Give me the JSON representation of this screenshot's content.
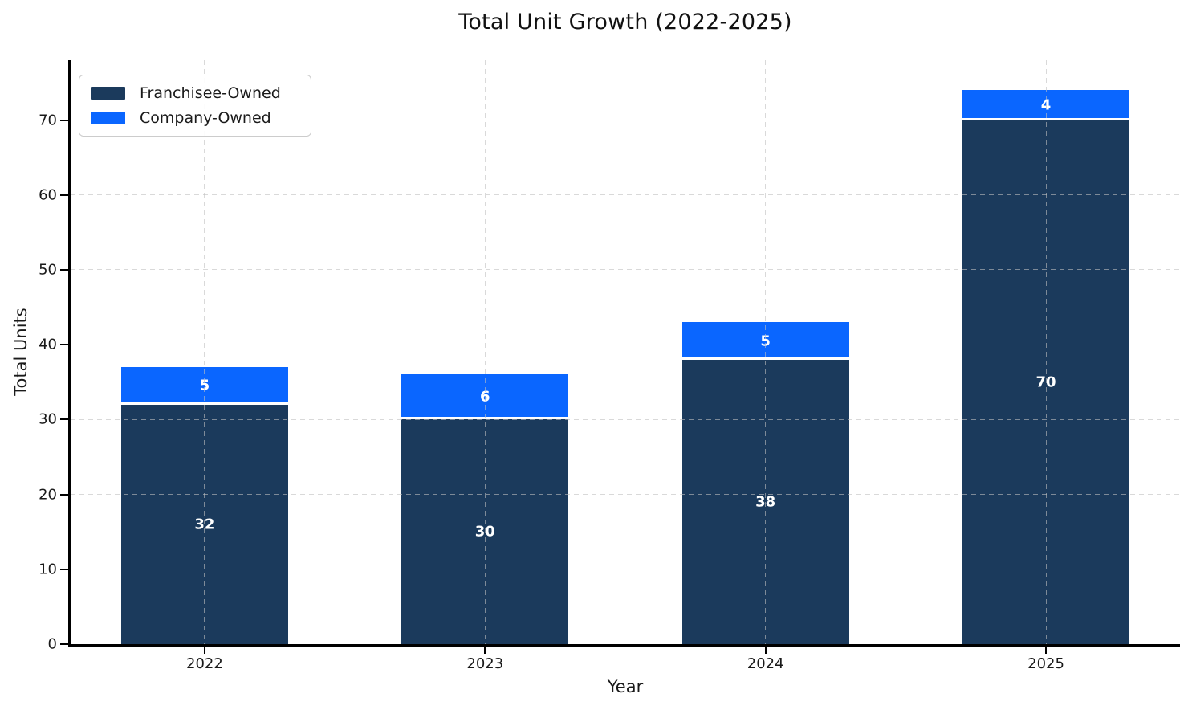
{
  "chart_data": {
    "type": "bar",
    "stacked": true,
    "title": "Total Unit Growth (2022-2025)",
    "xlabel": "Year",
    "ylabel": "Total Units",
    "categories": [
      "2022",
      "2023",
      "2024",
      "2025"
    ],
    "series": [
      {
        "name": "Franchisee-Owned",
        "color": "#1b3a5c",
        "values": [
          32,
          30,
          38,
          70
        ]
      },
      {
        "name": "Company-Owned",
        "color": "#0a66ff",
        "values": [
          5,
          6,
          5,
          4
        ]
      }
    ],
    "totals": [
      37,
      36,
      43,
      74
    ],
    "yticks": [
      0,
      10,
      20,
      30,
      40,
      50,
      60,
      70
    ],
    "ylim": [
      0,
      78
    ],
    "grid": true,
    "grid_style": "dashed",
    "legend_position": "upper left",
    "bar_value_labels": true,
    "colors": {
      "axis": "#000000",
      "grid": "#c0c0c0",
      "value_label": "#ffffff",
      "segment_divider": "#ffffff"
    }
  }
}
